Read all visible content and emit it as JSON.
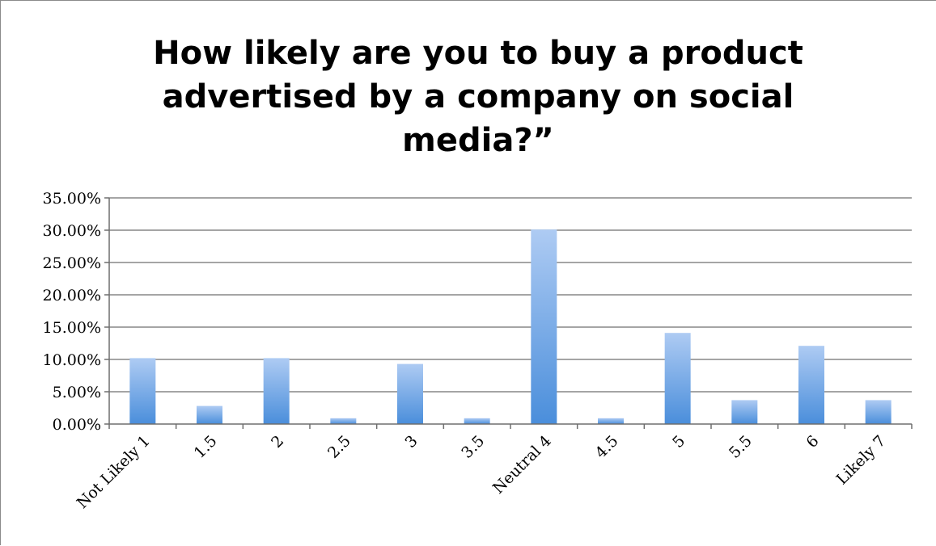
{
  "chart_data": {
    "type": "bar",
    "title": "How likely are you to buy a product advertised by a company on social media?”",
    "xlabel": "",
    "ylabel": "",
    "categories": [
      "Not Likely 1",
      "1.5",
      "2",
      "2.5",
      "3",
      "3.5",
      "Neutral 4",
      "4.5",
      "5",
      "5.5",
      "6",
      "Likely 7"
    ],
    "values": [
      10.2,
      2.8,
      10.2,
      0.9,
      9.3,
      0.9,
      30.1,
      0.9,
      14.1,
      3.7,
      12.1,
      3.7
    ],
    "ylim": [
      0,
      35
    ],
    "yticks": [
      "0.00%",
      "5.00%",
      "10.00%",
      "15.00%",
      "20.00%",
      "25.00%",
      "30.00%",
      "35.00%"
    ],
    "grid": true,
    "legend": "none",
    "colors": {
      "bar_top": "#aecbf3",
      "bar_bottom": "#4a8edb",
      "gridline": "#878787",
      "axis": "#6e6e6e"
    }
  }
}
